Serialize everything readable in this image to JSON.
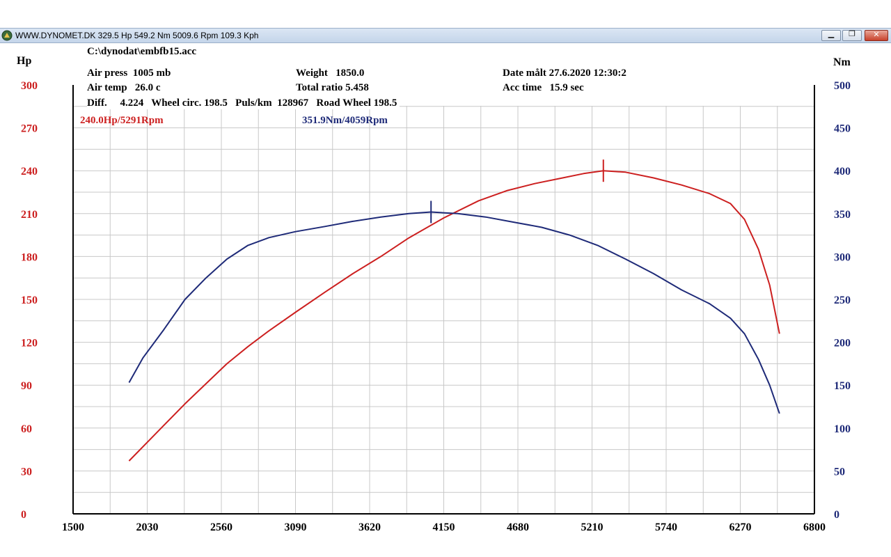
{
  "window": {
    "title": "WWW.DYNOMET.DK  329.5 Hp 549.2 Nm 5009.6 Rpm 109.3 Kph",
    "buttons": {
      "minimize": "▁",
      "maximize": "❐",
      "close": "✕"
    }
  },
  "run_info": {
    "file": "C:\\dynodat\\embfb15.acc",
    "air_press": "Air press  1005 mb",
    "air_temp": "Air temp   26.0 c",
    "diff": "Diff.     4.224   Wheel circ. 198.5   Puls/km  128967   Road Wheel 198.5",
    "weight": "Weight   1850.0",
    "total_ratio": "Total ratio 5.458",
    "date": "Date målt 27.6.2020 12:30:2",
    "acc_time": "Acc time   15.9 sec"
  },
  "chart_data": {
    "type": "line",
    "xlabel": "",
    "xlim": [
      1500,
      6800
    ],
    "x_ticks": [
      1500,
      2030,
      2560,
      3090,
      3620,
      4150,
      4680,
      5210,
      5740,
      6270,
      6800
    ],
    "y_left": {
      "label": "Hp",
      "lim": [
        0,
        300
      ],
      "ticks": [
        0,
        30,
        60,
        90,
        120,
        150,
        180,
        210,
        240,
        270,
        300
      ],
      "color": "#cc1f1f"
    },
    "y_right": {
      "label": "Nm",
      "lim": [
        0,
        500
      ],
      "ticks": [
        0,
        50,
        100,
        150,
        200,
        250,
        300,
        350,
        400,
        450,
        500
      ],
      "color": "#1e2a78"
    },
    "grid": true,
    "series": [
      {
        "name": "Hp",
        "axis": "left",
        "color": "#cc1f1f",
        "peak_label": "240.0Hp/5291Rpm",
        "peak": {
          "x": 5291,
          "y": 240.0
        },
        "x": [
          1900,
          2030,
          2150,
          2300,
          2450,
          2600,
          2750,
          2900,
          3090,
          3300,
          3500,
          3700,
          3900,
          4150,
          4400,
          4600,
          4800,
          5000,
          5150,
          5291,
          5450,
          5650,
          5850,
          6050,
          6200,
          6300,
          6400,
          6480,
          6550
        ],
        "y": [
          37,
          50,
          62,
          77,
          91,
          105,
          117,
          128,
          141,
          155,
          168,
          180,
          193,
          207,
          219,
          226,
          231,
          235,
          238,
          240,
          239,
          235,
          230,
          224,
          217,
          206,
          185,
          160,
          126
        ]
      },
      {
        "name": "Nm",
        "axis": "right",
        "color": "#1e2a78",
        "peak_label": "351.9Nm/4059Rpm",
        "peak": {
          "x": 4059,
          "y": 351.9
        },
        "x": [
          1900,
          2000,
          2150,
          2300,
          2450,
          2600,
          2750,
          2900,
          3090,
          3300,
          3500,
          3700,
          3900,
          4059,
          4250,
          4450,
          4650,
          4850,
          5050,
          5250,
          5450,
          5650,
          5850,
          6050,
          6200,
          6300,
          6400,
          6480,
          6550
        ],
        "y": [
          153,
          182,
          215,
          250,
          275,
          297,
          313,
          322,
          329,
          335,
          341,
          346,
          350,
          351.9,
          350,
          346,
          340,
          334,
          325,
          313,
          297,
          280,
          261,
          245,
          228,
          210,
          180,
          150,
          117
        ]
      }
    ]
  }
}
